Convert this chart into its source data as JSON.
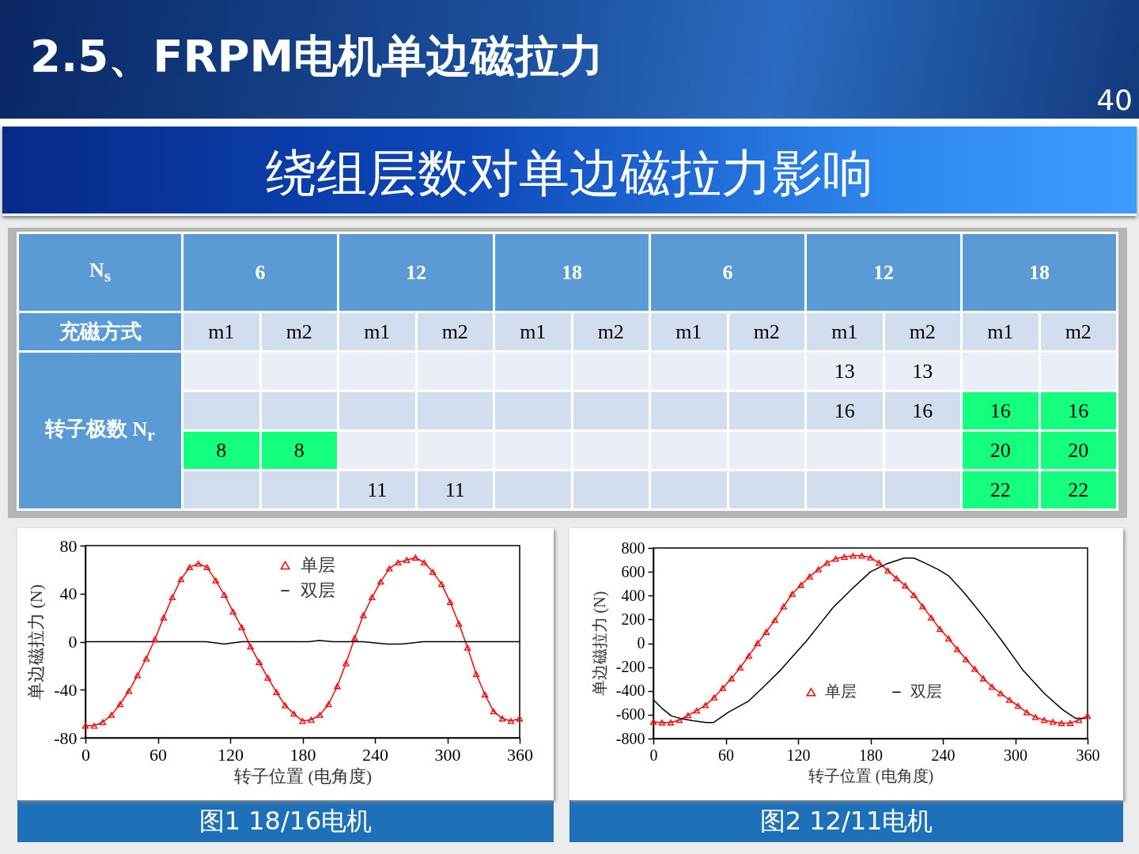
{
  "chart_data": [
    {
      "type": "other",
      "title": "2.5、FRPM电机单边磁拉力",
      "subtitle": "绕组层数对单边磁拉力影响",
      "annotations": [
        "40",
        "6",
        "12",
        "18",
        "6",
        "12",
        "18"
      ],
      "x2label": "N$_{s}$",
      "xlabel": "充磁方式",
      "categories": [
        "m1",
        "m2",
        "m1",
        "m2",
        "m1",
        "m2",
        "m1",
        "m2",
        "m1",
        "m2",
        "m1",
        "m2"
      ],
      "ylabel": "转子极数 N$_{r}$",
      "cell_labels": [
        [
          null,
          null,
          null,
          null,
          null,
          null,
          null,
          null,
          "13",
          "13",
          null,
          null
        ],
        [
          null,
          null,
          null,
          null,
          null,
          null,
          null,
          null,
          "16",
          "16",
          "16",
          "16"
        ],
        [
          "8",
          "8",
          null,
          null,
          null,
          null,
          null,
          null,
          null,
          null,
          "20",
          "20"
        ],
        [
          null,
          null,
          "11",
          "11",
          null,
          null,
          null,
          null,
          null,
          null,
          "22",
          "22"
        ]
      ],
      "colors": [
        [
          null,
          null,
          null,
          null,
          null,
          null,
          null,
          null,
          null,
          null,
          null,
          null
        ],
        [
          null,
          null,
          null,
          null,
          null,
          null,
          null,
          null,
          null,
          null,
          "#14ff7e",
          "#14ff7e"
        ],
        [
          "#14ff7e",
          "#14ff7e",
          null,
          null,
          null,
          null,
          null,
          null,
          null,
          null,
          "#14ff7e",
          "#14ff7e"
        ],
        [
          null,
          null,
          null,
          null,
          null,
          null,
          null,
          null,
          null,
          null,
          "#14ff7e",
          "#14ff7e"
        ]
      ]
    },
    {
      "type": "line",
      "xlabel": "转子位置 (电角度)",
      "ylabel": "单边磁拉力 (N)",
      "xlim": [
        0,
        360
      ],
      "xticks": [
        0,
        60,
        120,
        180,
        240,
        300,
        360
      ],
      "ylim": [
        -80,
        80
      ],
      "yticks": [
        -80,
        -40,
        0,
        40,
        80
      ],
      "legend": "top",
      "annotations": [
        "图1 18/16电机"
      ],
      "series": [
        {
          "name": "单层",
          "color": "#ff0000",
          "marker": "triangle",
          "x": [
            0,
            7.2,
            14.4,
            21.6,
            28.8,
            36,
            43.2,
            50.4,
            57.6,
            64.8,
            72,
            79.2,
            86.4,
            93.6,
            100.8,
            108,
            115.2,
            122.4,
            129.6,
            136.8,
            144,
            151.2,
            158.4,
            165.6,
            172.8,
            180,
            187.2,
            194.4,
            201.6,
            208.8,
            216,
            223.2,
            230.4,
            237.6,
            244.8,
            252,
            259.2,
            266.4,
            273.6,
            280.8,
            288,
            295.2,
            302.4,
            309.6,
            316.8,
            324,
            331.2,
            338.4,
            345.6,
            352.8,
            360
          ],
          "values": [
            -70,
            -70,
            -67,
            -61,
            -52,
            -41,
            -28,
            -14,
            2,
            20,
            37,
            52,
            62,
            65,
            62,
            51,
            39,
            25,
            12,
            -4,
            -17,
            -30,
            -42,
            -53,
            -60,
            -66,
            -65,
            -61,
            -52,
            -37,
            -18,
            3,
            22,
            37,
            50,
            61,
            66,
            68,
            70,
            66,
            58,
            48,
            33,
            15,
            -5,
            -27,
            -44,
            -58,
            -64,
            -66,
            -64
          ]
        },
        {
          "name": "双层",
          "color": "#000000",
          "x": [
            0,
            20,
            40,
            60,
            80,
            100,
            108,
            115,
            122,
            130,
            150,
            170,
            185,
            194,
            205,
            230,
            250,
            262,
            280,
            300,
            320,
            340,
            360
          ],
          "values": [
            0,
            0,
            0,
            0,
            0,
            0,
            -1,
            -2,
            -1,
            0,
            0,
            0,
            0,
            1,
            0,
            0,
            -2,
            -2,
            0,
            0,
            0,
            0,
            0
          ]
        }
      ]
    },
    {
      "type": "line",
      "xlabel": "转子位置 (电角度)",
      "ylabel": "单边磁拉力 (N)",
      "xlim": [
        0,
        360
      ],
      "xticks": [
        0,
        60,
        120,
        180,
        240,
        300,
        360
      ],
      "ylim": [
        -800,
        800
      ],
      "yticks": [
        -800,
        -600,
        -400,
        -200,
        0,
        200,
        400,
        600,
        800
      ],
      "legend": "bottom",
      "annotations": [
        "图2 12/11电机"
      ],
      "series": [
        {
          "name": "单层",
          "color": "#ff0000",
          "marker": "triangle",
          "x": [
            0,
            7.2,
            14.4,
            21.6,
            28.8,
            36,
            43.2,
            50.4,
            57.6,
            64.8,
            72,
            79.2,
            86.4,
            93.6,
            100.8,
            108,
            115.2,
            122.4,
            129.6,
            136.8,
            144,
            151.2,
            158.4,
            165.6,
            172.8,
            180,
            187.2,
            194.4,
            201.6,
            208.8,
            216,
            223.2,
            230.4,
            237.6,
            244.8,
            252,
            259.2,
            266.4,
            273.6,
            280.8,
            288,
            295.2,
            302.4,
            309.6,
            316.8,
            324,
            331.2,
            338.4,
            345.6,
            352.8,
            360
          ],
          "values": [
            -660,
            -665,
            -665,
            -645,
            -605,
            -565,
            -520,
            -455,
            -375,
            -295,
            -205,
            -105,
            0,
            95,
            195,
            310,
            415,
            490,
            560,
            620,
            675,
            710,
            725,
            735,
            735,
            720,
            675,
            610,
            545,
            485,
            405,
            310,
            215,
            120,
            40,
            -50,
            -135,
            -215,
            -295,
            -365,
            -420,
            -475,
            -525,
            -580,
            -620,
            -645,
            -660,
            -670,
            -670,
            -645,
            -610
          ]
        },
        {
          "name": "双层",
          "color": "#000000",
          "x": [
            0,
            7,
            15,
            22,
            33,
            44,
            50,
            62,
            79,
            92,
            105,
            116,
            127,
            138,
            149,
            165,
            180,
            193,
            208,
            216,
            225,
            236,
            245,
            258,
            274,
            289,
            306,
            324,
            339,
            350,
            360
          ],
          "values": [
            -475,
            -545,
            -610,
            -630,
            -650,
            -665,
            -665,
            -580,
            -485,
            -360,
            -230,
            -105,
            20,
            160,
            300,
            460,
            600,
            665,
            715,
            715,
            675,
            620,
            565,
            420,
            220,
            20,
            -220,
            -420,
            -555,
            -630,
            -630
          ]
        }
      ]
    }
  ]
}
